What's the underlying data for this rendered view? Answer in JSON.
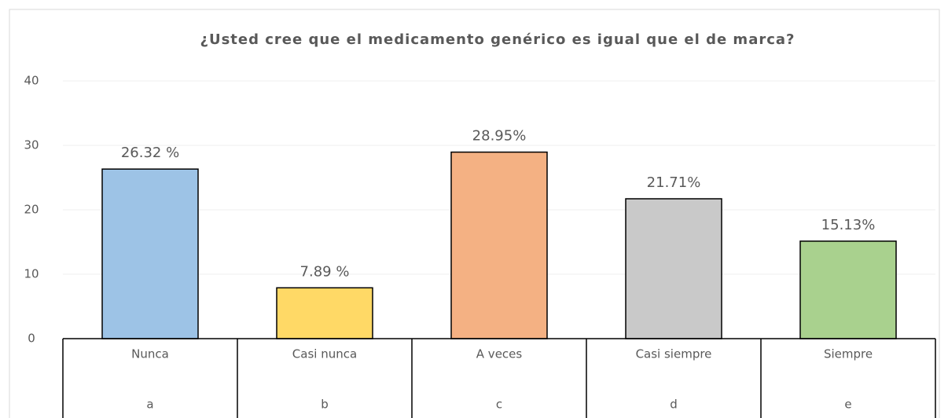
{
  "chart_data": {
    "type": "bar",
    "title": "¿Usted cree que el medicamento genérico es igual que el de marca?",
    "categories": [
      "Nunca",
      "Casi nunca",
      "A veces",
      "Casi siempre",
      "Siempre"
    ],
    "category_codes": [
      "a",
      "b",
      "c",
      "d",
      "e"
    ],
    "values": [
      26.32,
      7.89,
      28.95,
      21.71,
      15.13
    ],
    "value_labels": [
      "26.32 %",
      "7.89 %",
      "28.95%",
      "21.71%",
      "15.13%"
    ],
    "colors": [
      "#9dc3e6",
      "#ffd966",
      "#f4b183",
      "#c9c9c9",
      "#a9d18e"
    ],
    "ylim": [
      0,
      40
    ],
    "yticks": [
      0,
      10,
      20,
      30,
      40
    ],
    "grid": true
  }
}
